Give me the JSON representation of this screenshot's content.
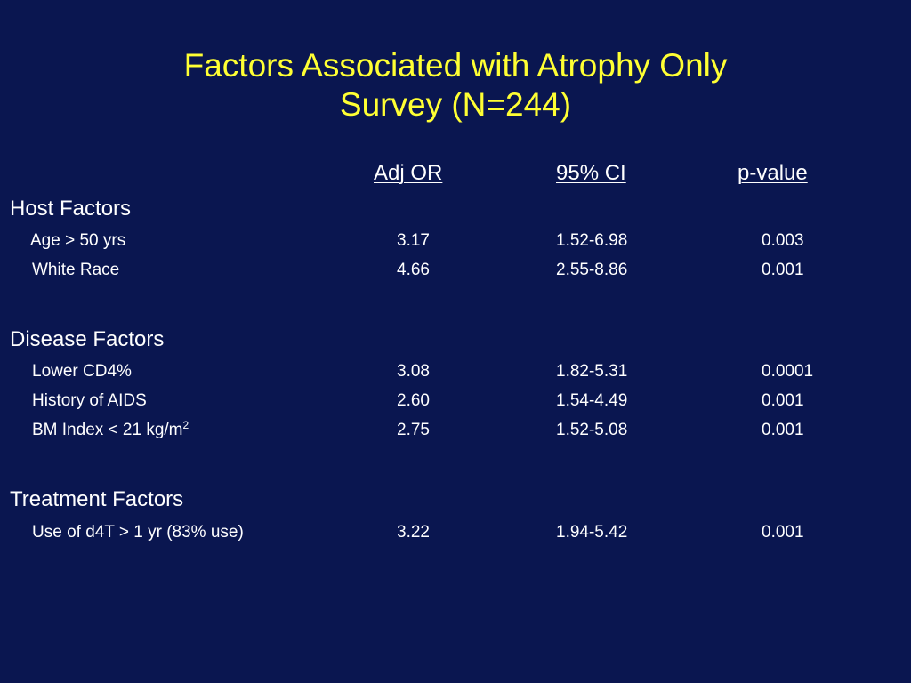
{
  "title": {
    "line1": "Factors Associated with Atrophy Only",
    "line2": "Survey (N=244)"
  },
  "headers": {
    "adj_or": "Adj OR",
    "ci": "95% CI",
    "p_value": "p-value"
  },
  "sections": [
    {
      "title": "Host Factors",
      "rows": [
        {
          "label": "Age > 50 yrs",
          "adj_or": "3.17",
          "ci": "1.52-6.98",
          "p_value": "0.003"
        },
        {
          "label": "White Race",
          "adj_or": "4.66",
          "ci": "2.55-8.86",
          "p_value": "0.001"
        }
      ]
    },
    {
      "title": "Disease Factors",
      "rows": [
        {
          "label": "Lower CD4%",
          "adj_or": "3.08",
          "ci": "1.82-5.31",
          "p_value": "0.0001"
        },
        {
          "label": "History of AIDS",
          "adj_or": "2.60",
          "ci": "1.54-4.49",
          "p_value": "0.001"
        },
        {
          "label": "BM Index < 21 kg/m",
          "label_sup": "2",
          "adj_or": "2.75",
          "ci": "1.52-5.08",
          "p_value": "0.001"
        }
      ]
    },
    {
      "title": "Treatment Factors",
      "rows": [
        {
          "label": "Use of d4T > 1 yr (83% use)",
          "adj_or": "3.22",
          "ci": "1.94-5.42",
          "p_value": "0.001"
        }
      ]
    }
  ],
  "colors": {
    "background": "#0a1650",
    "title": "#ffff33",
    "text": "#ffffff"
  }
}
